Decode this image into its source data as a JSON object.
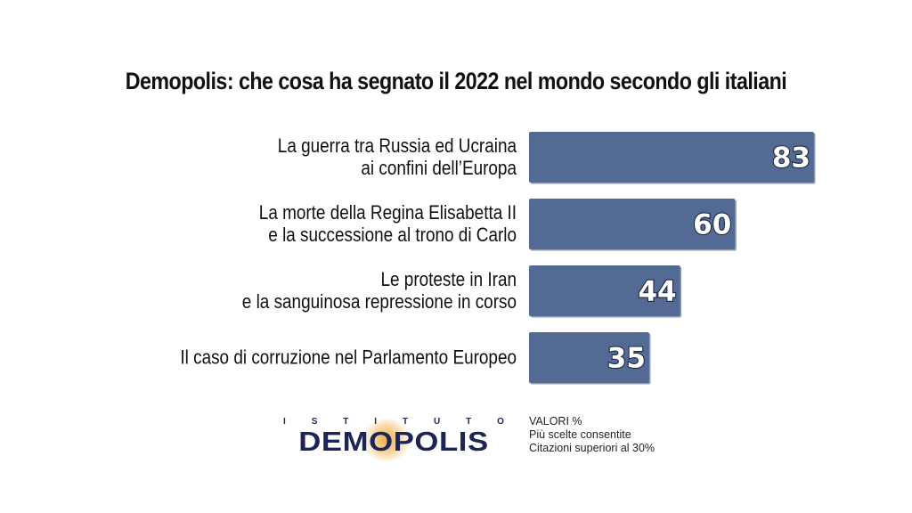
{
  "title": "Demopolis: che cosa ha segnato il 2022 nel mondo secondo gli italiani",
  "colors": {
    "bar": "#536a95",
    "bar_shadow": "#3b4f75",
    "value_text": "#ffffff",
    "brand_navy": "#1b2656",
    "brand_orange": "#f0a93c"
  },
  "chart_data": {
    "type": "bar",
    "orientation": "horizontal",
    "title": "Demopolis: che cosa ha segnato il 2022 nel mondo secondo gli italiani",
    "categories": [
      [
        "La guerra tra Russia ed Ucraina",
        "ai confini dell’Europa"
      ],
      [
        "La morte della Regina Elisabetta II",
        "e la successione al trono di Carlo"
      ],
      [
        "Le proteste in Iran",
        "e la sanguinosa repressione in corso"
      ],
      [
        "Il caso di corruzione nel Parlamento Europeo"
      ]
    ],
    "values": [
      83,
      60,
      44,
      35
    ],
    "value_labels": [
      "83",
      "60",
      "44",
      "35"
    ],
    "unit": "%",
    "grid": false,
    "legend": "none"
  },
  "logo": {
    "top_text": "ISTITUTO",
    "main_text": "DEMOPOLIS"
  },
  "notes": [
    "VALORI %",
    "Più scelte consentite",
    "Citazioni superiori al 30%"
  ]
}
